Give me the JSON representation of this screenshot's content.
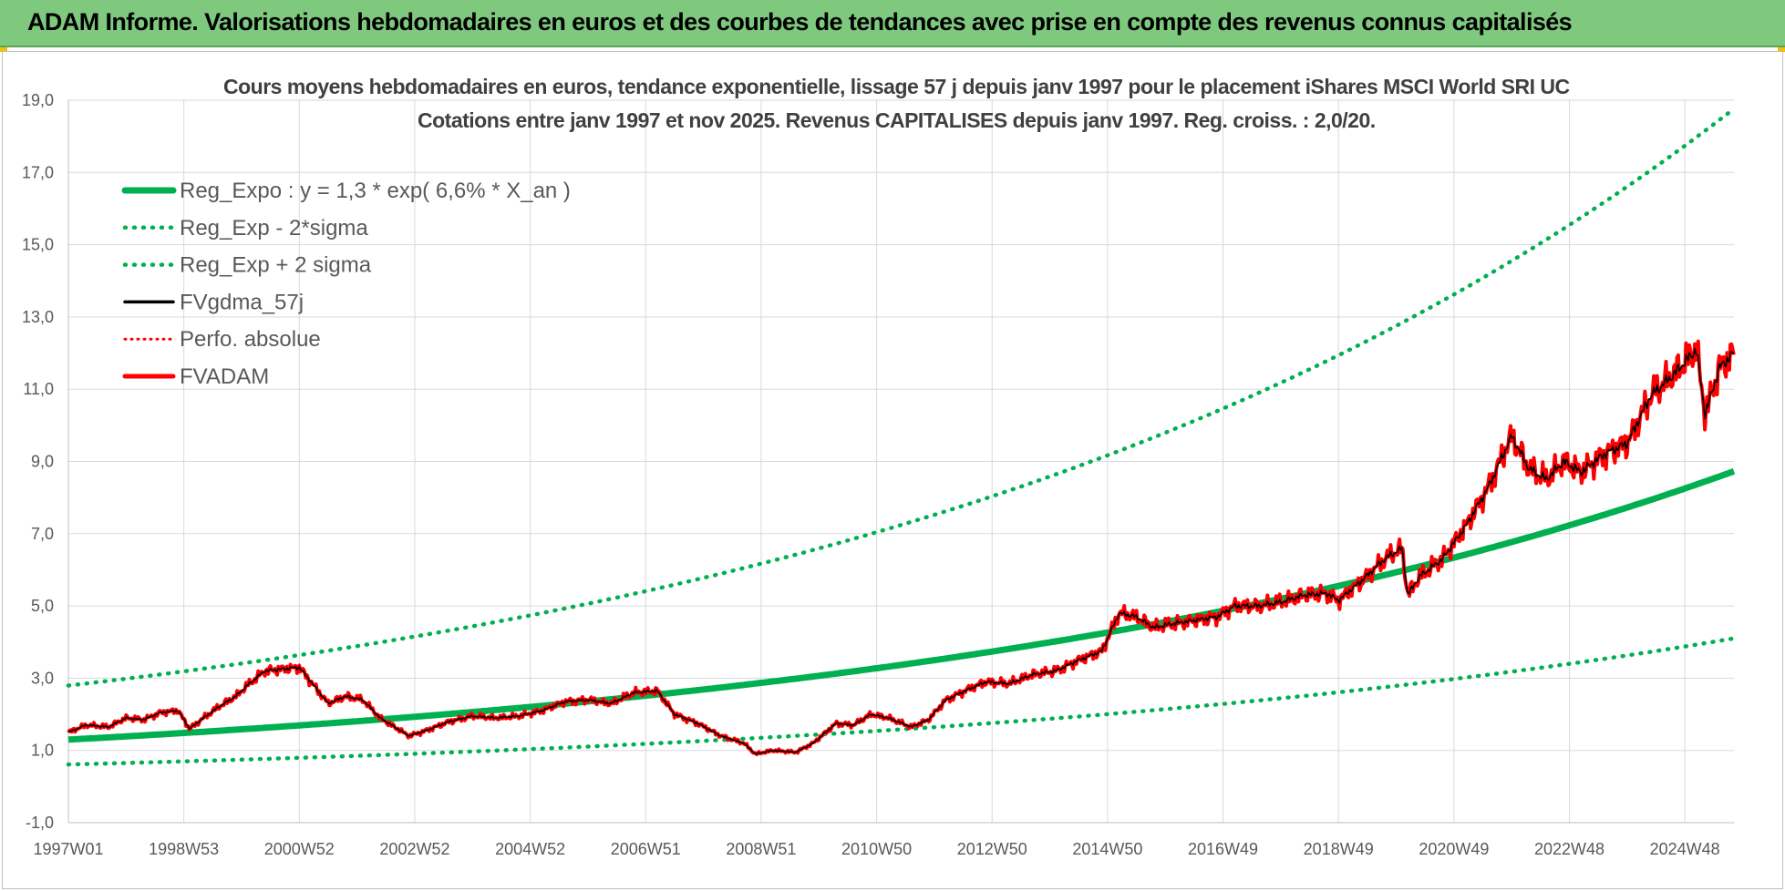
{
  "header": {
    "title": "ADAM Informe. Valorisations hebdomadaires en euros et des courbes de tendances avec prise en compte des revenus connus capitalisés"
  },
  "chart_data": {
    "type": "line",
    "title_line1": "Cours moyens hebdomadaires en euros, tendance exponentielle, lissage 57 j depuis janv 1997 pour le placement iShares MSCI World SRI UC",
    "title_line2": "Cotations entre janv 1997 et nov 2025. Revenus CAPITALISES depuis janv 1997. Reg. croiss. : 2,0/20.",
    "ylim": [
      -1,
      19
    ],
    "yticks": [
      "-1,0",
      "1,0",
      "3,0",
      "5,0",
      "7,0",
      "9,0",
      "11,0",
      "13,0",
      "15,0",
      "17,0",
      "19,0"
    ],
    "xlim": [
      1997.0,
      2025.85
    ],
    "xticks": [
      {
        "t": 1997.0,
        "label": "1997W01"
      },
      {
        "t": 1999.0,
        "label": "1998W53"
      },
      {
        "t": 2001.0,
        "label": "2000W52"
      },
      {
        "t": 2003.0,
        "label": "2002W52"
      },
      {
        "t": 2005.0,
        "label": "2004W52"
      },
      {
        "t": 2007.0,
        "label": "2006W51"
      },
      {
        "t": 2009.0,
        "label": "2008W51"
      },
      {
        "t": 2011.0,
        "label": "2010W50"
      },
      {
        "t": 2013.0,
        "label": "2012W50"
      },
      {
        "t": 2015.0,
        "label": "2014W50"
      },
      {
        "t": 2017.0,
        "label": "2016W49"
      },
      {
        "t": 2019.0,
        "label": "2018W49"
      },
      {
        "t": 2021.0,
        "label": "2020W49"
      },
      {
        "t": 2023.0,
        "label": "2022W48"
      },
      {
        "t": 2025.0,
        "label": "2024W48"
      }
    ],
    "grid": true,
    "legend_position": "top-left",
    "regression": {
      "a": 1.3,
      "rate": 0.066,
      "start": 1997.0
    },
    "sigma_bands": {
      "upper_factor": 2.15,
      "lower_factor": 0.47
    },
    "series": [
      {
        "name": "Reg_Expo : y = 1,3 * exp( 6,6% *  X_an )",
        "color": "#00b050",
        "style": "solid-thick"
      },
      {
        "name": "Reg_Exp - 2*sigma",
        "color": "#00b050",
        "style": "dotted"
      },
      {
        "name": "Reg_Exp + 2 sigma",
        "color": "#00b050",
        "style": "dotted"
      },
      {
        "name": "FVgdma_57j",
        "color": "#000000",
        "style": "solid"
      },
      {
        "name": "Perfo. absolue",
        "color": "#ff0000",
        "style": "dotted"
      },
      {
        "name": "FVADAM",
        "color": "#ff0000",
        "style": "solid-thick"
      }
    ],
    "fvadam": [
      [
        1997.0,
        1.5
      ],
      [
        1997.3,
        1.7
      ],
      [
        1997.7,
        1.65
      ],
      [
        1998.0,
        1.9
      ],
      [
        1998.3,
        1.85
      ],
      [
        1998.6,
        2.05
      ],
      [
        1998.9,
        2.1
      ],
      [
        1999.1,
        1.6
      ],
      [
        1999.3,
        1.85
      ],
      [
        1999.6,
        2.2
      ],
      [
        1999.9,
        2.5
      ],
      [
        2000.1,
        2.8
      ],
      [
        2000.4,
        3.2
      ],
      [
        2000.7,
        3.25
      ],
      [
        2001.0,
        3.3
      ],
      [
        2001.2,
        2.9
      ],
      [
        2001.5,
        2.3
      ],
      [
        2001.8,
        2.5
      ],
      [
        2002.1,
        2.4
      ],
      [
        2002.4,
        1.9
      ],
      [
        2002.7,
        1.6
      ],
      [
        2002.9,
        1.4
      ],
      [
        2003.2,
        1.55
      ],
      [
        2003.6,
        1.8
      ],
      [
        2004.0,
        1.95
      ],
      [
        2004.4,
        1.9
      ],
      [
        2004.8,
        1.95
      ],
      [
        2005.2,
        2.1
      ],
      [
        2005.6,
        2.35
      ],
      [
        2006.0,
        2.4
      ],
      [
        2006.4,
        2.3
      ],
      [
        2006.8,
        2.6
      ],
      [
        2007.2,
        2.65
      ],
      [
        2007.5,
        2.0
      ],
      [
        2007.9,
        1.75
      ],
      [
        2008.3,
        1.4
      ],
      [
        2008.7,
        1.2
      ],
      [
        2008.9,
        0.9
      ],
      [
        2009.2,
        1.0
      ],
      [
        2009.6,
        0.95
      ],
      [
        2009.9,
        1.2
      ],
      [
        2010.3,
        1.75
      ],
      [
        2010.6,
        1.7
      ],
      [
        2010.9,
        2.0
      ],
      [
        2011.2,
        1.9
      ],
      [
        2011.6,
        1.65
      ],
      [
        2011.9,
        1.85
      ],
      [
        2012.2,
        2.4
      ],
      [
        2012.6,
        2.7
      ],
      [
        2012.9,
        2.9
      ],
      [
        2013.3,
        2.85
      ],
      [
        2013.7,
        3.1
      ],
      [
        2014.1,
        3.2
      ],
      [
        2014.5,
        3.5
      ],
      [
        2014.9,
        3.75
      ],
      [
        2015.2,
        4.8
      ],
      [
        2015.5,
        4.7
      ],
      [
        2015.8,
        4.4
      ],
      [
        2016.1,
        4.5
      ],
      [
        2016.5,
        4.6
      ],
      [
        2016.9,
        4.7
      ],
      [
        2017.2,
        5.0
      ],
      [
        2017.6,
        5.0
      ],
      [
        2018.0,
        5.1
      ],
      [
        2018.4,
        5.3
      ],
      [
        2018.8,
        5.35
      ],
      [
        2019.0,
        5.15
      ],
      [
        2019.4,
        5.7
      ],
      [
        2019.8,
        6.3
      ],
      [
        2020.1,
        6.6
      ],
      [
        2020.2,
        5.3
      ],
      [
        2020.4,
        5.8
      ],
      [
        2020.8,
        6.3
      ],
      [
        2021.2,
        7.2
      ],
      [
        2021.6,
        8.3
      ],
      [
        2022.0,
        9.7
      ],
      [
        2022.3,
        8.8
      ],
      [
        2022.6,
        8.5
      ],
      [
        2022.9,
        9.0
      ],
      [
        2023.2,
        8.7
      ],
      [
        2023.6,
        9.2
      ],
      [
        2024.0,
        9.5
      ],
      [
        2024.4,
        10.8
      ],
      [
        2024.8,
        11.4
      ],
      [
        2025.2,
        12.1
      ],
      [
        2025.35,
        10.3
      ],
      [
        2025.6,
        11.6
      ],
      [
        2025.85,
        12.0
      ]
    ]
  }
}
